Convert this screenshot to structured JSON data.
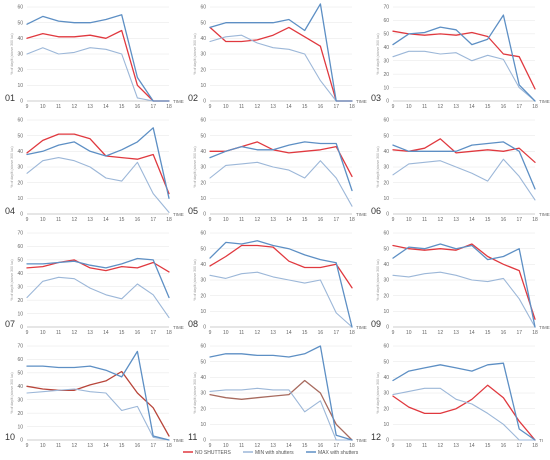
{
  "chart_data": {
    "type": "line",
    "colors": {
      "no_shutters": "#e0393f",
      "min_shutters": "#9cb7d8",
      "max_shutters": "#5d8fc4",
      "p10_nos": "#b8453a",
      "p11_nos": "#a76a5e"
    },
    "legend": {
      "items": [
        {
          "key": "no_shutters",
          "label": "NO SHUTTERS"
        },
        {
          "key": "min_shutters",
          "label": "MIN with shutters"
        },
        {
          "key": "max_shutters",
          "label": "MAX with shutters"
        }
      ],
      "position": "bottom-center"
    },
    "panels": [
      {
        "id": "01",
        "x": [
          9,
          10,
          11,
          12,
          13,
          14,
          15,
          16,
          17,
          18
        ],
        "xticks": [
          "9",
          "10",
          "11",
          "12",
          "13",
          "14",
          "15",
          "16",
          "17",
          "18"
        ],
        "xunit": "TIME",
        "ylim": [
          0,
          60
        ],
        "yticks": [
          "0",
          "10",
          "20",
          "30",
          "40",
          "50",
          "60"
        ],
        "ylabel": "% of daylit (above 300 lux)",
        "series": [
          {
            "key": "no_shutters",
            "values": [
              40,
              43,
              41,
              41,
              42,
              40,
              45,
              10,
              0,
              0
            ]
          },
          {
            "key": "min_shutters",
            "values": [
              30,
              34,
              30,
              31,
              34,
              33,
              30,
              2,
              0,
              0
            ]
          },
          {
            "key": "max_shutters",
            "values": [
              49,
              54,
              51,
              50,
              50,
              52,
              55,
              15,
              0,
              0
            ]
          }
        ]
      },
      {
        "id": "02",
        "x": [
          9,
          10,
          11,
          12,
          13,
          14,
          15,
          16,
          17,
          18
        ],
        "xticks": [
          "9",
          "10",
          "11",
          "12",
          "13",
          "14",
          "15",
          "16",
          "17",
          "18"
        ],
        "xunit": "TIME",
        "ylim": [
          0,
          60
        ],
        "yticks": [
          "0",
          "10",
          "20",
          "30",
          "40",
          "50",
          "60"
        ],
        "ylabel": "% of daylit (above 300 lux)",
        "series": [
          {
            "key": "no_shutters",
            "values": [
              47,
              38,
              38,
              39,
              42,
              47,
              41,
              35,
              0,
              0
            ]
          },
          {
            "key": "min_shutters",
            "values": [
              38,
              41,
              42,
              37,
              34,
              33,
              30,
              13,
              0,
              0
            ]
          },
          {
            "key": "max_shutters",
            "values": [
              47,
              50,
              50,
              50,
              50,
              52,
              45,
              62,
              0,
              0
            ]
          }
        ]
      },
      {
        "id": "03",
        "x": [
          9,
          10,
          11,
          12,
          13,
          14,
          15,
          16,
          17,
          18
        ],
        "xticks": [
          "9",
          "10",
          "11",
          "12",
          "13",
          "14",
          "15",
          "16",
          "17",
          "18"
        ],
        "xunit": "TIME",
        "ylim": [
          0,
          70
        ],
        "yticks": [
          "0",
          "10",
          "20",
          "30",
          "40",
          "50",
          "60",
          "70"
        ],
        "ylabel": "% of daylit (above 300 lux)",
        "series": [
          {
            "key": "no_shutters",
            "values": [
              52,
              50,
              49,
              50,
              49,
              51,
              48,
              35,
              33,
              9
            ]
          },
          {
            "key": "min_shutters",
            "values": [
              33,
              37,
              37,
              35,
              36,
              30,
              34,
              31,
              10,
              0
            ]
          },
          {
            "key": "max_shutters",
            "values": [
              42,
              50,
              51,
              55,
              53,
              42,
              46,
              64,
              12,
              0
            ]
          }
        ]
      },
      {
        "id": "04",
        "x": [
          9,
          10,
          11,
          12,
          13,
          14,
          15,
          16,
          17,
          18
        ],
        "xticks": [
          "9",
          "10",
          "11",
          "12",
          "13",
          "14",
          "15",
          "16",
          "17",
          "18"
        ],
        "xunit": "TIME",
        "ylim": [
          0,
          60
        ],
        "yticks": [
          "0",
          "10",
          "20",
          "30",
          "40",
          "50",
          "60"
        ],
        "ylabel": "% of daylit (above 300 lux)",
        "series": [
          {
            "key": "no_shutters",
            "values": [
              39,
              47,
              51,
              51,
              48,
              37,
              36,
              35,
              38,
              13
            ]
          },
          {
            "key": "min_shutters",
            "values": [
              26,
              34,
              36,
              34,
              30,
              23,
              21,
              33,
              13,
              1
            ]
          },
          {
            "key": "max_shutters",
            "values": [
              38,
              40,
              44,
              46,
              40,
              37,
              41,
              46,
              55,
              10
            ]
          }
        ]
      },
      {
        "id": "05",
        "x": [
          9,
          10,
          11,
          12,
          13,
          14,
          15,
          16,
          17,
          18
        ],
        "xticks": [
          "9",
          "10",
          "11",
          "12",
          "13",
          "14",
          "15",
          "16",
          "17",
          "18"
        ],
        "xunit": "TIME",
        "ylim": [
          0,
          60
        ],
        "yticks": [
          "0",
          "10",
          "20",
          "30",
          "40",
          "50",
          "60"
        ],
        "ylabel": "% of daylit (above 300 lux)",
        "series": [
          {
            "key": "no_shutters",
            "values": [
              40,
              40,
              43,
              46,
              41,
              39,
              40,
              41,
              43,
              24
            ]
          },
          {
            "key": "min_shutters",
            "values": [
              23,
              31,
              32,
              33,
              30,
              28,
              23,
              34,
              23,
              5
            ]
          },
          {
            "key": "max_shutters",
            "values": [
              36,
              40,
              43,
              41,
              41,
              44,
              46,
              45,
              45,
              15
            ]
          }
        ]
      },
      {
        "id": "06",
        "x": [
          9,
          10,
          11,
          12,
          13,
          14,
          15,
          16,
          17,
          18
        ],
        "xticks": [
          "9",
          "10",
          "11",
          "12",
          "13",
          "14",
          "15",
          "16",
          "17",
          "18"
        ],
        "xunit": "TIME",
        "ylim": [
          0,
          60
        ],
        "yticks": [
          "0",
          "10",
          "20",
          "30",
          "40",
          "50",
          "60"
        ],
        "ylabel": "% of daylit (above 300 lux)",
        "series": [
          {
            "key": "no_shutters",
            "values": [
              41,
              40,
              42,
              48,
              39,
              40,
              41,
              40,
              42,
              33
            ]
          },
          {
            "key": "min_shutters",
            "values": [
              25,
              32,
              33,
              34,
              30,
              26,
              21,
              35,
              24,
              9
            ]
          },
          {
            "key": "max_shutters",
            "values": [
              44,
              40,
              40,
              40,
              40,
              44,
              45,
              46,
              40,
              16
            ]
          }
        ]
      },
      {
        "id": "07",
        "x": [
          9,
          10,
          11,
          12,
          13,
          14,
          15,
          16,
          17,
          18
        ],
        "xticks": [
          "9",
          "10",
          "11",
          "12",
          "13",
          "14",
          "15",
          "16",
          "17",
          "18"
        ],
        "xunit": "TIME",
        "ylim": [
          0,
          70
        ],
        "yticks": [
          "0",
          "10",
          "20",
          "30",
          "40",
          "50",
          "60",
          "70"
        ],
        "ylabel": "% of daylit (above 300 lux)",
        "series": [
          {
            "key": "no_shutters",
            "values": [
              44,
              45,
              48,
              50,
              44,
              42,
              45,
              44,
              48,
              41
            ]
          },
          {
            "key": "min_shutters",
            "values": [
              22,
              34,
              37,
              36,
              29,
              24,
              21,
              32,
              24,
              7
            ]
          },
          {
            "key": "max_shutters",
            "values": [
              47,
              47,
              48,
              49,
              46,
              44,
              47,
              51,
              50,
              22
            ]
          }
        ]
      },
      {
        "id": "08",
        "x": [
          9,
          10,
          11,
          12,
          13,
          14,
          15,
          16,
          17,
          18
        ],
        "xticks": [
          "9",
          "10",
          "11",
          "12",
          "13",
          "14",
          "15",
          "16",
          "17",
          "18"
        ],
        "xunit": "TIME",
        "ylim": [
          0,
          60
        ],
        "yticks": [
          "0",
          "10",
          "20",
          "30",
          "40",
          "50",
          "60"
        ],
        "ylabel": "% of daylit (above 300 lux)",
        "series": [
          {
            "key": "no_shutters",
            "values": [
              39,
              45,
              52,
              52,
              51,
              42,
              38,
              38,
              40,
              25
            ]
          },
          {
            "key": "min_shutters",
            "values": [
              33,
              31,
              34,
              35,
              32,
              30,
              28,
              30,
              9,
              0
            ]
          },
          {
            "key": "max_shutters",
            "values": [
              44,
              54,
              53,
              55,
              52,
              50,
              46,
              43,
              41,
              0
            ]
          }
        ]
      },
      {
        "id": "09",
        "x": [
          9,
          10,
          11,
          12,
          13,
          14,
          15,
          16,
          17,
          18
        ],
        "xticks": [
          "9",
          "10",
          "11",
          "12",
          "13",
          "14",
          "15",
          "16",
          "17",
          "18"
        ],
        "xunit": "TIME",
        "ylim": [
          0,
          60
        ],
        "yticks": [
          "0",
          "10",
          "20",
          "30",
          "40",
          "50",
          "60"
        ],
        "ylabel": "% of daylit (above 300 lux)",
        "series": [
          {
            "key": "no_shutters",
            "values": [
              52,
              50,
              49,
              50,
              49,
              53,
              45,
              40,
              36,
              5
            ]
          },
          {
            "key": "min_shutters",
            "values": [
              33,
              32,
              34,
              35,
              33,
              30,
              29,
              31,
              18,
              0
            ]
          },
          {
            "key": "max_shutters",
            "values": [
              44,
              51,
              50,
              53,
              50,
              52,
              43,
              45,
              50,
              0
            ]
          }
        ]
      },
      {
        "id": "10",
        "x": [
          9,
          10,
          11,
          12,
          13,
          14,
          15,
          16,
          17,
          18
        ],
        "xticks": [
          "9",
          "10",
          "11",
          "12",
          "13",
          "14",
          "15",
          "16",
          "17",
          "18"
        ],
        "xunit": "TIME",
        "ylim": [
          0,
          70
        ],
        "yticks": [
          "0",
          "10",
          "20",
          "30",
          "40",
          "50",
          "60",
          "70"
        ],
        "ylabel": "% of daylit (above 300 lux)",
        "series": [
          {
            "key": "no_shutters",
            "values": [
              40,
              38,
              37,
              37,
              41,
              44,
              51,
              35,
              24,
              3
            ]
          },
          {
            "key": "min_shutters",
            "values": [
              35,
              36,
              37,
              38,
              36,
              35,
              22,
              25,
              2,
              0
            ]
          },
          {
            "key": "max_shutters",
            "values": [
              55,
              55,
              54,
              54,
              55,
              52,
              47,
              66,
              3,
              0
            ]
          }
        ]
      },
      {
        "id": "11",
        "x": [
          9,
          10,
          11,
          12,
          13,
          14,
          15,
          16,
          17,
          18
        ],
        "xticks": [
          "9",
          "10",
          "11",
          "12",
          "13",
          "14",
          "15",
          "16",
          "17",
          "18"
        ],
        "xunit": "TIME",
        "ylim": [
          0,
          60
        ],
        "yticks": [
          "0",
          "10",
          "20",
          "30",
          "40",
          "50",
          "60"
        ],
        "ylabel": "% of daylit (above 300 lux)",
        "series": [
          {
            "key": "no_shutters",
            "values": [
              29,
              27,
              26,
              27,
              28,
              29,
              38,
              30,
              10,
              0
            ]
          },
          {
            "key": "min_shutters",
            "values": [
              31,
              32,
              32,
              33,
              32,
              32,
              18,
              25,
              0,
              0
            ]
          },
          {
            "key": "max_shutters",
            "values": [
              53,
              55,
              55,
              54,
              54,
              53,
              55,
              60,
              3,
              0
            ]
          }
        ]
      },
      {
        "id": "12",
        "x": [
          9,
          10,
          11,
          12,
          13,
          14,
          15,
          16,
          17,
          18
        ],
        "xticks": [
          "9",
          "10",
          "11",
          "12",
          "13",
          "14",
          "15",
          "16",
          "17",
          "18"
        ],
        "xunit": "TI",
        "ylim": [
          0,
          60
        ],
        "yticks": [
          "0",
          "10",
          "20",
          "30",
          "40",
          "50",
          "60"
        ],
        "ylabel": "% of daylit (above 300 lux)",
        "series": [
          {
            "key": "no_shutters",
            "values": [
              28,
              21,
              17,
              17,
              20,
              26,
              35,
              27,
              12,
              0
            ]
          },
          {
            "key": "min_shutters",
            "values": [
              29,
              31,
              33,
              33,
              26,
              23,
              17,
              10,
              0,
              0
            ]
          },
          {
            "key": "max_shutters",
            "values": [
              38,
              44,
              46,
              48,
              46,
              44,
              48,
              49,
              7,
              0
            ]
          }
        ]
      }
    ]
  }
}
